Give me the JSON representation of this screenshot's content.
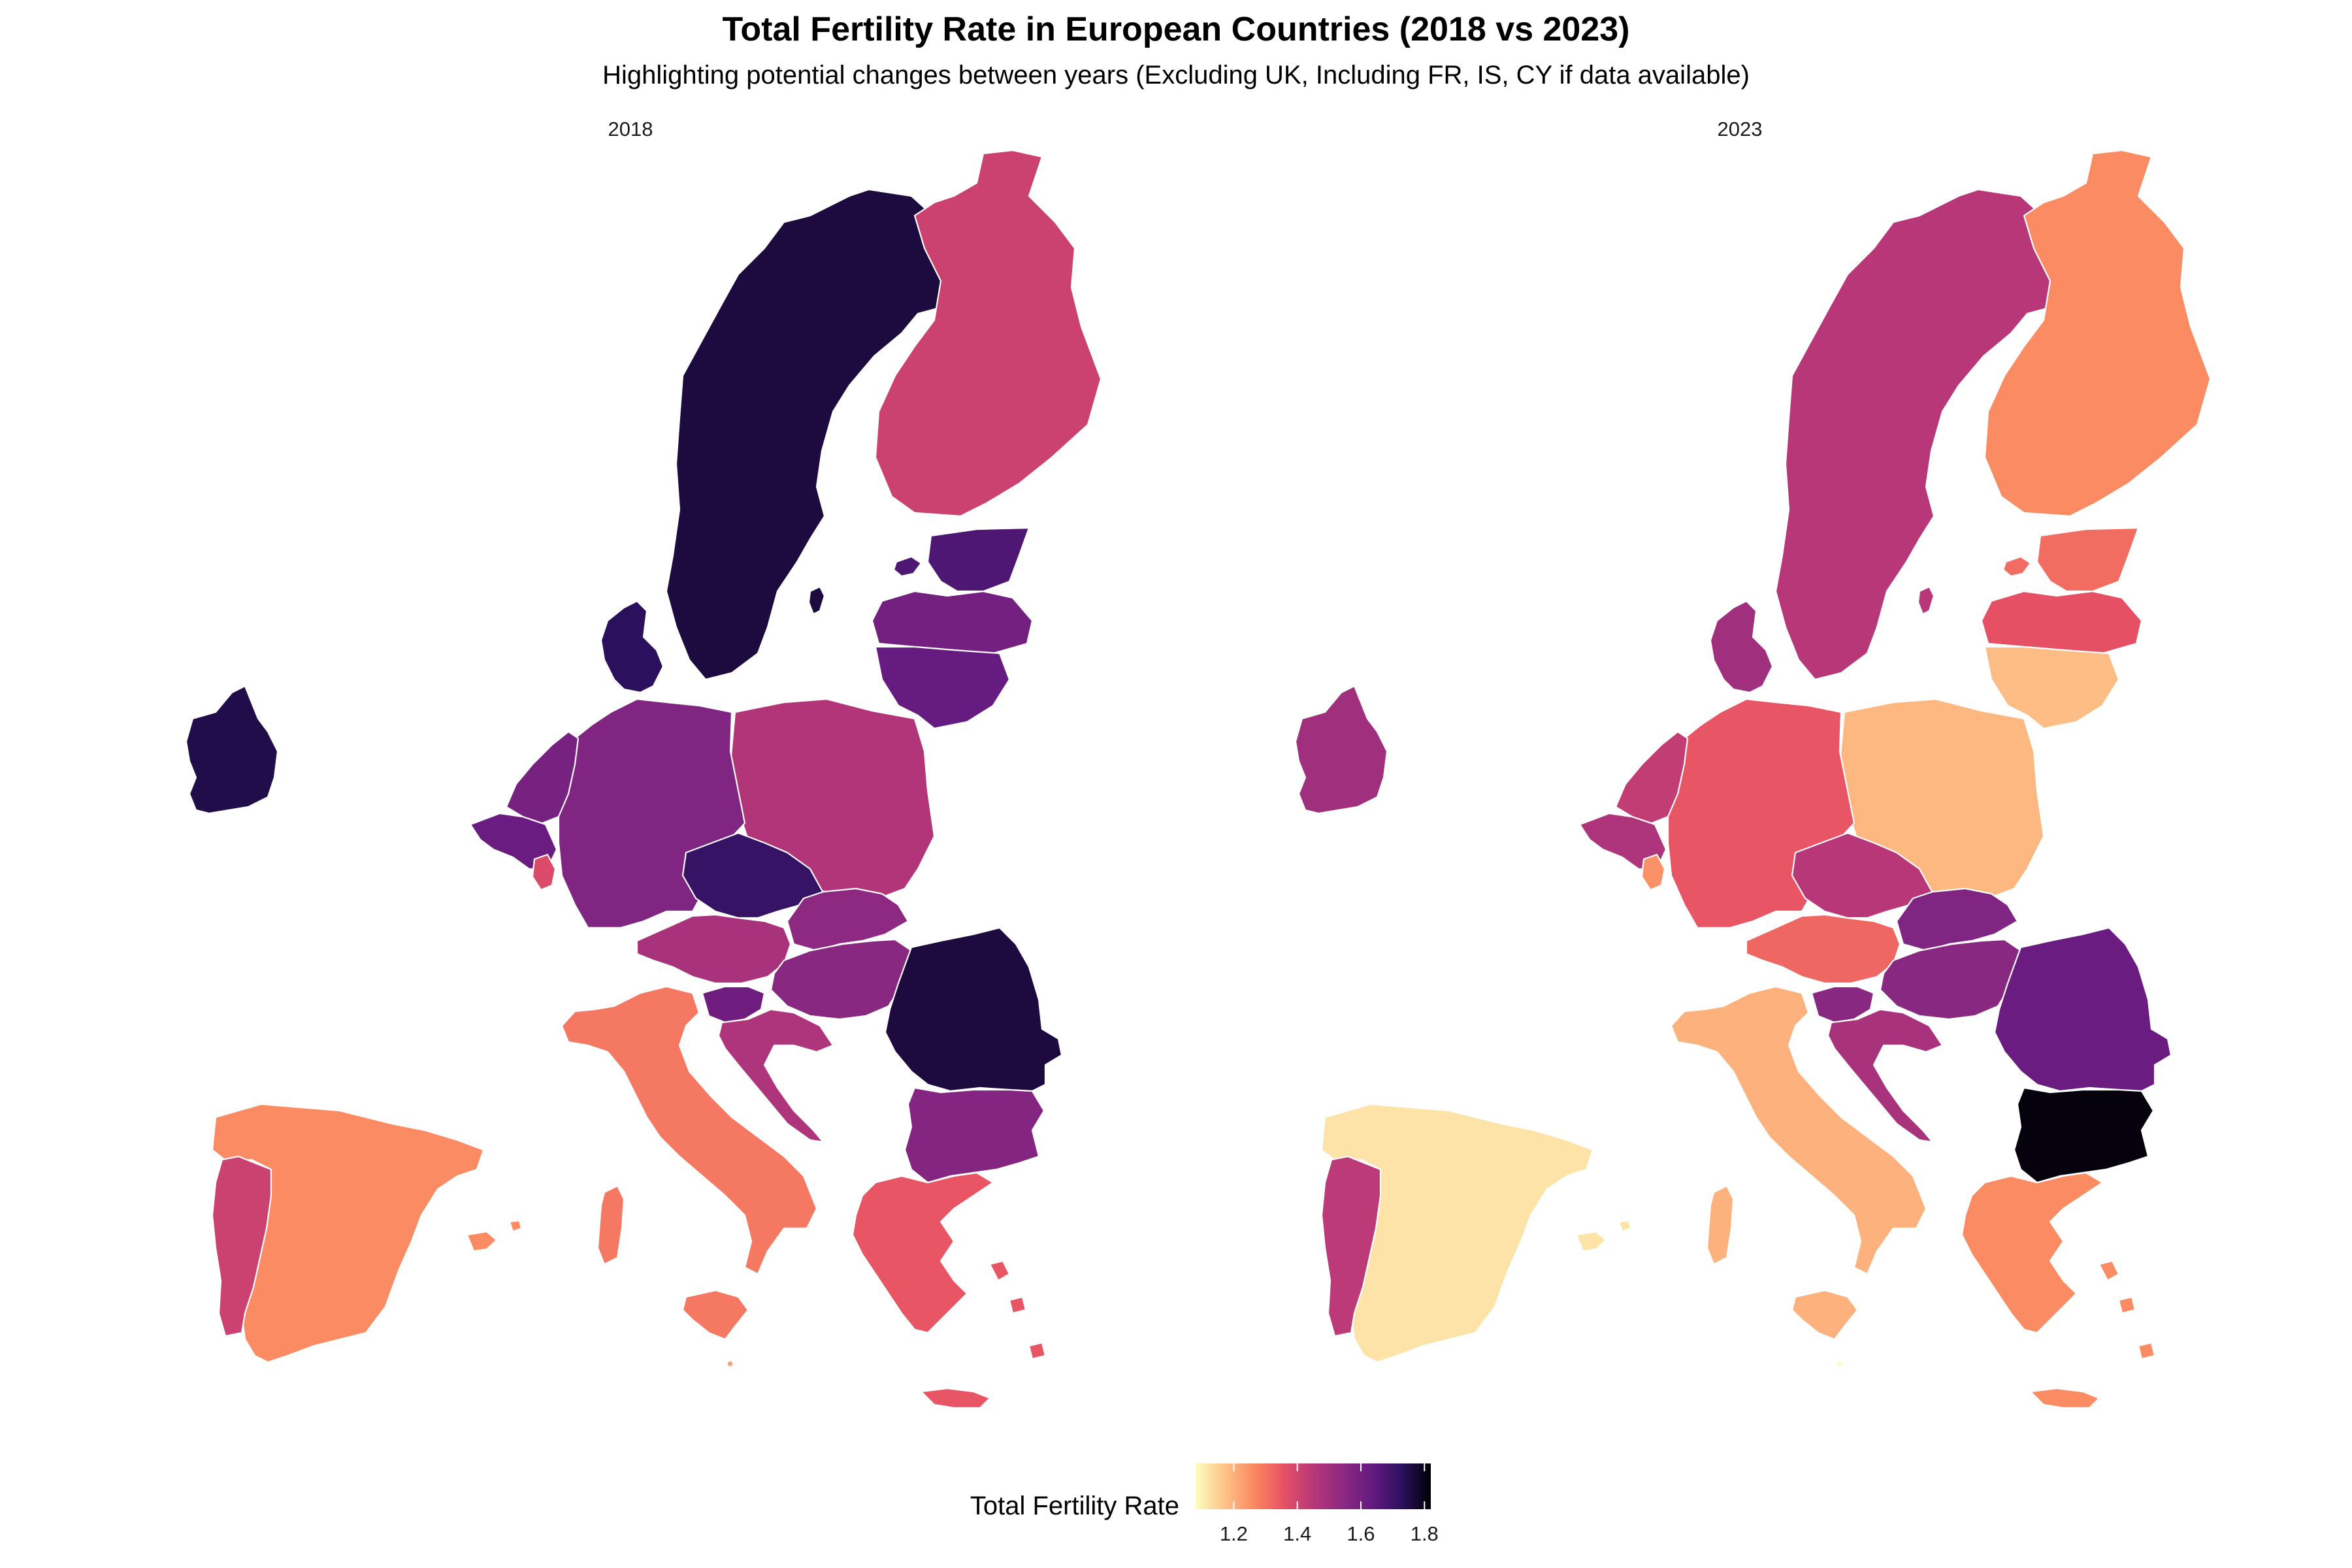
{
  "title": "Total Fertility Rate in European Countries (2018 vs 2023)",
  "subtitle": "Highlighting potential changes between years (Excluding UK, Including FR, IS, CY if data available)",
  "legend": {
    "title": "Total Fertility Rate",
    "ticks": [
      "1.2",
      "1.4",
      "1.6",
      "1.8"
    ],
    "tick_values": [
      1.2,
      1.4,
      1.6,
      1.8
    ],
    "range": [
      1.08,
      1.82
    ],
    "colormap": [
      "#fcfdbf",
      "#fec287",
      "#fb8861",
      "#e65164",
      "#b73779",
      "#8c2981",
      "#641a80",
      "#2c115f",
      "#000004"
    ]
  },
  "panels": [
    {
      "label": "2018",
      "values": {
        "SE": 1.76,
        "FI": 1.41,
        "EE": 1.67,
        "LV": 1.6,
        "LT": 1.63,
        "PL": 1.46,
        "DK": 1.73,
        "DE": 1.57,
        "NL": 1.59,
        "BE": 1.62,
        "LU": 1.38,
        "CZ": 1.71,
        "SK": 1.54,
        "AT": 1.48,
        "HU": 1.55,
        "SI": 1.61,
        "HR": 1.47,
        "RO": 1.76,
        "BG": 1.56,
        "IT": 1.29,
        "ES": 1.26,
        "PT": 1.41,
        "GR": 1.35,
        "IE": 1.75,
        "MT": 1.23
      }
    },
    {
      "label": "2023",
      "values": {
        "SE": 1.45,
        "FI": 1.26,
        "EE": 1.31,
        "LV": 1.36,
        "LT": 1.18,
        "PL": 1.19,
        "DK": 1.5,
        "DE": 1.35,
        "NL": 1.43,
        "BE": 1.47,
        "LU": 1.25,
        "CZ": 1.45,
        "SK": 1.57,
        "AT": 1.32,
        "HU": 1.55,
        "SI": 1.55,
        "HR": 1.48,
        "RO": 1.62,
        "BG": 1.81,
        "IT": 1.2,
        "ES": 1.12,
        "PT": 1.44,
        "GR": 1.26,
        "IE": 1.5,
        "MT": 1.06
      }
    }
  ]
}
